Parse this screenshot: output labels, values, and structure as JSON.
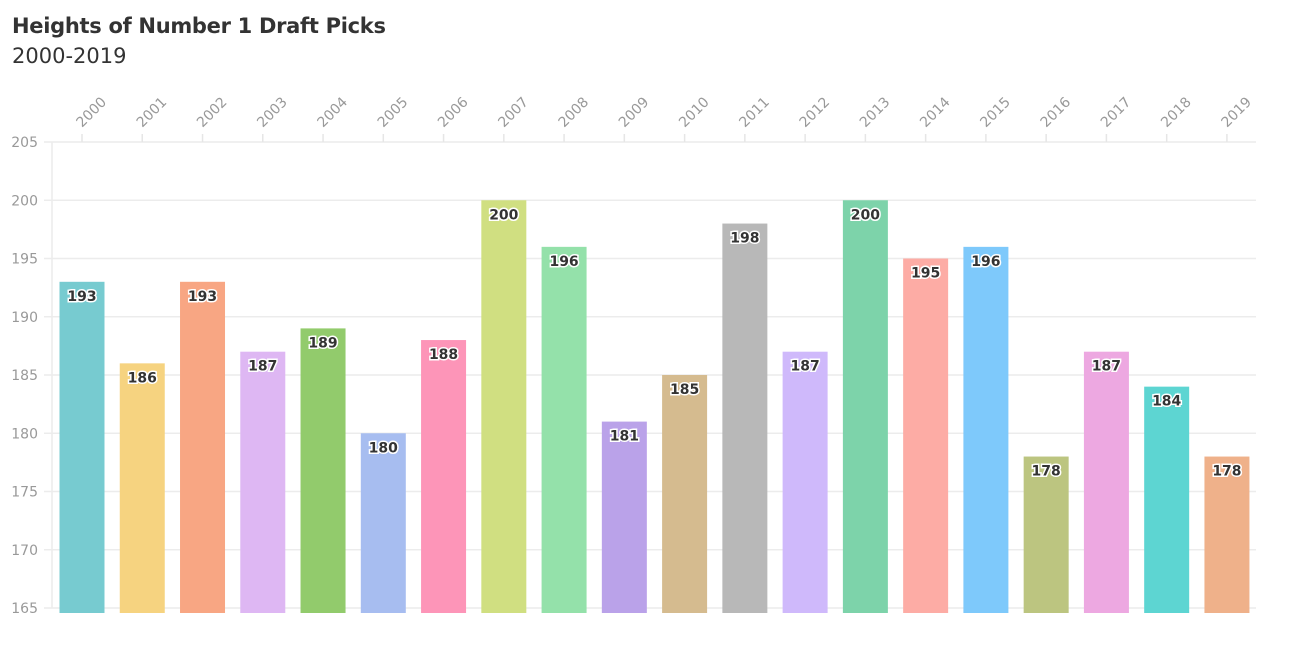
{
  "chart_data": {
    "type": "bar",
    "title": "Heights of Number 1 Draft Picks",
    "subtitle": "2000-2019",
    "xlabel": "",
    "ylabel": "",
    "categories": [
      "2000",
      "2001",
      "2002",
      "2003",
      "2004",
      "2005",
      "2006",
      "2007",
      "2008",
      "2009",
      "2010",
      "2011",
      "2012",
      "2013",
      "2014",
      "2015",
      "2016",
      "2017",
      "2018",
      "2019"
    ],
    "values": [
      193,
      186,
      193,
      187,
      189,
      180,
      188,
      200,
      196,
      181,
      185,
      198,
      187,
      200,
      195,
      196,
      178,
      187,
      184,
      178
    ],
    "colors": [
      "#77cbd0",
      "#f6d380",
      "#f8a683",
      "#deb7f3",
      "#92cb6c",
      "#a7bdf0",
      "#fd95b8",
      "#d0df81",
      "#94e1aa",
      "#baa2e9",
      "#d5bb8f",
      "#b8b8b8",
      "#cfb9fb",
      "#7dd3aa",
      "#fdaca5",
      "#7ec9fb",
      "#bcc580",
      "#eda8e1",
      "#5dd5d2",
      "#efb18a"
    ],
    "ylim": [
      165,
      205
    ],
    "yticks": [
      165,
      170,
      175,
      180,
      185,
      190,
      195,
      200,
      205
    ],
    "x_axis_position": "top",
    "grid": true,
    "legend": "none"
  }
}
